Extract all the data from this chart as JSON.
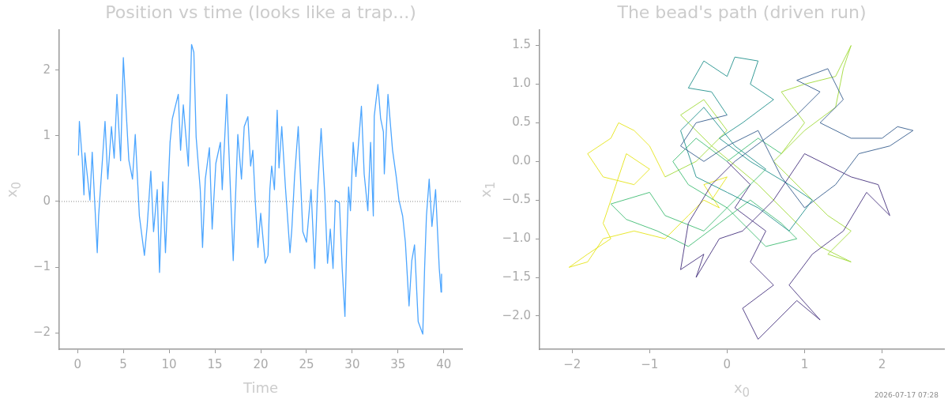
{
  "chart_data": [
    {
      "type": "line",
      "title": "Position vs time (looks like a trap...)",
      "xlabel": "Time",
      "ylabel": "x$_{0}$",
      "grid": false,
      "xlim": [
        -2,
        42
      ],
      "xticks": [
        0,
        5,
        10,
        15,
        20,
        25,
        30,
        35,
        40
      ],
      "ylim": [
        -2.25,
        2.61
      ],
      "yticks": [
        {
          "value": -2,
          "label": "−2"
        },
        {
          "value": -1,
          "label": "−1"
        },
        0,
        1,
        2
      ],
      "ref_lines": [
        {
          "axis": "y",
          "value": 0,
          "color": "#888888",
          "line_style": "dotted"
        }
      ],
      "series": [
        {
          "color": "#4da6ff",
          "x": [
            0.1,
            0.2,
            0.5,
            0.7,
            0.8,
            1.35,
            1.6,
            2.15,
            2.3,
            3.0,
            3.3,
            3.7,
            4.0,
            4.3,
            4.7,
            5.0,
            5.3,
            5.6,
            6.0,
            6.3,
            6.75,
            7.3,
            7.6,
            8.0,
            8.3,
            8.7,
            8.95,
            9.3,
            9.6,
            10.1,
            10.35,
            11.0,
            11.25,
            11.55,
            12.1,
            12.45,
            12.7,
            12.95,
            13.4,
            13.65,
            13.95,
            14.4,
            14.7,
            15.1,
            15.6,
            15.8,
            16.3,
            16.5,
            17.0,
            17.5,
            17.9,
            18.2,
            18.6,
            18.9,
            19.14,
            19.4,
            19.7,
            20.0,
            20.5,
            20.8,
            21.0,
            21.2,
            21.5,
            21.8,
            22.0,
            22.3,
            22.7,
            23.2,
            23.4,
            23.7,
            24.1,
            24.6,
            25.0,
            25.5,
            25.9,
            26.2,
            26.6,
            27.0,
            27.3,
            27.6,
            27.9,
            28.15,
            28.6,
            28.9,
            29.2,
            29.4,
            29.6,
            29.8,
            30.1,
            30.4,
            31.0,
            31.3,
            31.7,
            32.0,
            32.3,
            32.4,
            32.8,
            33.1,
            33.4,
            33.5,
            33.9,
            34.4,
            34.8,
            35.1,
            35.5,
            35.8,
            36.2,
            36.5,
            36.8,
            37.2,
            37.7,
            37.9,
            38.1,
            38.4,
            38.7,
            39.1,
            39.3,
            39.5,
            39.7,
            39.75
          ],
          "values": [
            0.7,
            1.22,
            0.66,
            0.1,
            0.74,
            0.02,
            0.75,
            -0.78,
            -0.22,
            1.22,
            0.34,
            1.14,
            0.66,
            1.63,
            0.62,
            2.19,
            1.39,
            0.63,
            0.34,
            1.02,
            -0.22,
            -0.82,
            -0.38,
            0.46,
            -0.46,
            0.18,
            -1.08,
            0.3,
            -0.78,
            0.9,
            1.26,
            1.63,
            0.78,
            1.47,
            0.54,
            2.39,
            2.27,
            0.98,
            0.18,
            -0.7,
            0.34,
            0.82,
            -0.42,
            0.58,
            0.9,
            0.18,
            1.63,
            0.87,
            -0.9,
            1.02,
            0.34,
            1.14,
            1.29,
            0.54,
            0.78,
            0.02,
            -0.7,
            -0.18,
            -0.94,
            -0.82,
            0.18,
            0.54,
            0.18,
            1.39,
            0.51,
            1.14,
            0.22,
            -0.78,
            -0.42,
            0.38,
            1.14,
            -0.46,
            -0.62,
            0.18,
            -1.02,
            0.14,
            1.11,
            0.1,
            -0.94,
            -0.42,
            -1.02,
            0.02,
            -0.02,
            -1.02,
            -1.75,
            -0.62,
            0.22,
            -0.14,
            0.9,
            0.38,
            1.45,
            0.42,
            -0.14,
            0.9,
            -0.22,
            1.3,
            1.78,
            1.26,
            1.06,
            0.42,
            1.63,
            0.78,
            0.38,
            0.02,
            -0.22,
            -0.62,
            -1.59,
            -0.9,
            -0.66,
            -1.83,
            -2.02,
            -1.02,
            -0.22,
            0.34,
            -0.38,
            0.18,
            -0.42,
            -1.02,
            -1.38,
            -1.1
          ]
        }
      ]
    },
    {
      "type": "line",
      "title": "The bead's path (driven run)",
      "xlabel": "x$_{0}$",
      "ylabel": "x$_{1}$",
      "grid": false,
      "xlim": [
        -2.42,
        2.8
      ],
      "xticks": [
        {
          "value": -2,
          "label": "−2"
        },
        {
          "value": -1,
          "label": "−1"
        },
        0,
        1,
        2
      ],
      "ylim": [
        -2.43,
        1.7
      ],
      "yticks": [
        {
          "value": -2,
          "label": "−2.0"
        },
        {
          "value": -1.5,
          "label": "−1.5"
        },
        {
          "value": -1,
          "label": "−1.0"
        },
        {
          "value": -0.5,
          "label": "−0.5"
        },
        {
          "value": 0,
          "label": "0.0"
        },
        {
          "value": 0.5,
          "label": "0.5"
        },
        {
          "value": 1,
          "label": "1.0"
        },
        {
          "value": 1.5,
          "label": "1.5"
        }
      ],
      "annotations": [
        "2026-07-17 07:28"
      ],
      "series": [
        {
          "color": "#46327e",
          "x": [
            0,
            0.3,
            0.1,
            0.5,
            0.3,
            0.6,
            0.2,
            0.4,
            0.7,
            0.9,
            1.2,
            0.8,
            1.1,
            1.5,
            1.8,
            2.1,
            1.95,
            1.6,
            1.0,
            0.6,
            0.2,
            -0.1,
            -0.4,
            -0.3,
            -0.6,
            -0.5,
            -0.2,
            0.1
          ],
          "values": [
            0,
            -0.3,
            -0.6,
            -0.9,
            -1.3,
            -1.6,
            -1.9,
            -2.3,
            -2.0,
            -1.8,
            -2.05,
            -1.6,
            -1.2,
            -0.9,
            -0.4,
            -0.7,
            -0.3,
            -0.2,
            0.1,
            -0.5,
            -0.9,
            -1.0,
            -1.5,
            -1.2,
            -1.4,
            -0.8,
            -0.3,
            0
          ]
        },
        {
          "color": "#365c8d",
          "x": [
            0.1,
            0.5,
            0.9,
            1.2,
            0.9,
            1.3,
            1.5,
            1.2,
            1.6,
            2.0,
            2.2,
            2.4,
            2.1,
            1.7,
            1.4,
            1.0,
            0.7,
            0.4,
            0,
            -0.3,
            -0.6,
            -0.4,
            0
          ],
          "values": [
            0,
            0.3,
            0.6,
            0.9,
            1.05,
            1.2,
            0.8,
            0.5,
            0.3,
            0.3,
            0.45,
            0.4,
            0.2,
            0.1,
            -0.3,
            -0.6,
            -0.2,
            0.4,
            0.2,
            0,
            0.2,
            0.5,
            0.6
          ]
        },
        {
          "color": "#21918c",
          "x": [
            0,
            -0.2,
            -0.5,
            -0.3,
            0,
            0.1,
            0.4,
            0.3,
            0.6,
            0.2,
            -0.1,
            0.3,
            0.8,
            1.1,
            0.8,
            0.4,
            0,
            -0.4,
            -0.6,
            -0.3,
            0.1,
            0.5
          ],
          "values": [
            0.6,
            0.9,
            0.95,
            1.3,
            1.1,
            1.35,
            1.3,
            1.0,
            0.8,
            0.5,
            0.3,
            0,
            -0.3,
            -0.5,
            -0.9,
            -0.6,
            -0.4,
            -0.2,
            0.4,
            0.7,
            0.2,
            -0.1
          ]
        },
        {
          "color": "#3fbc73",
          "x": [
            0.5,
            0.1,
            -0.3,
            -0.8,
            -1.0,
            -1.5,
            -1.3,
            -0.9,
            -0.5,
            -0.1,
            0.3,
            0.7,
            0.9,
            0.5,
            0,
            -0.5,
            -0.7,
            -0.4,
            0,
            0.4,
            0.7
          ],
          "values": [
            -0.1,
            -0.5,
            -0.9,
            -0.7,
            -0.4,
            -0.55,
            -0.75,
            -0.9,
            -1.1,
            -0.8,
            -0.5,
            -0.8,
            -1.0,
            -1.1,
            -0.6,
            -0.3,
            0,
            0.3,
            0,
            0.3,
            0.1
          ]
        },
        {
          "color": "#a0da39",
          "x": [
            0.7,
            1.0,
            0.7,
            1.0,
            1.4,
            1.6,
            1.5,
            1.4,
            1.0,
            0.6,
            1.0,
            1.3,
            1.6,
            1.3,
            1.6,
            1.2,
            0.8,
            0.4,
            -0.2,
            -0.6,
            -0.3,
            0,
            -0.4,
            -0.8
          ],
          "values": [
            0.1,
            0.5,
            0.9,
            1.0,
            1.1,
            1.5,
            1.2,
            0.7,
            0.4,
            0,
            -0.4,
            -0.7,
            -0.9,
            -1.2,
            -1.3,
            -1.1,
            -0.7,
            -0.3,
            0.2,
            0.6,
            0.8,
            0.4,
            0,
            -0.2
          ]
        },
        {
          "color": "#e5e419",
          "x": [
            -0.8,
            -1.0,
            -1.2,
            -1.4,
            -1.5,
            -1.8,
            -1.6,
            -1.2,
            -1.0,
            -1.3,
            -1.5,
            -1.6,
            -1.5,
            -1.8,
            -2.04,
            -1.8,
            -1.6,
            -1.2,
            -0.8,
            -0.5,
            -0.3,
            -0.1,
            -0.3,
            0,
            -0.2
          ],
          "values": [
            -0.2,
            0.2,
            0.4,
            0.5,
            0.3,
            0.1,
            -0.2,
            -0.3,
            -0.1,
            0.1,
            -0.5,
            -0.8,
            -1.0,
            -1.2,
            -1.37,
            -1.3,
            -1.0,
            -0.9,
            -1.0,
            -0.7,
            -0.5,
            -0.6,
            -0.3,
            -0.2,
            -0.5
          ]
        }
      ]
    }
  ]
}
